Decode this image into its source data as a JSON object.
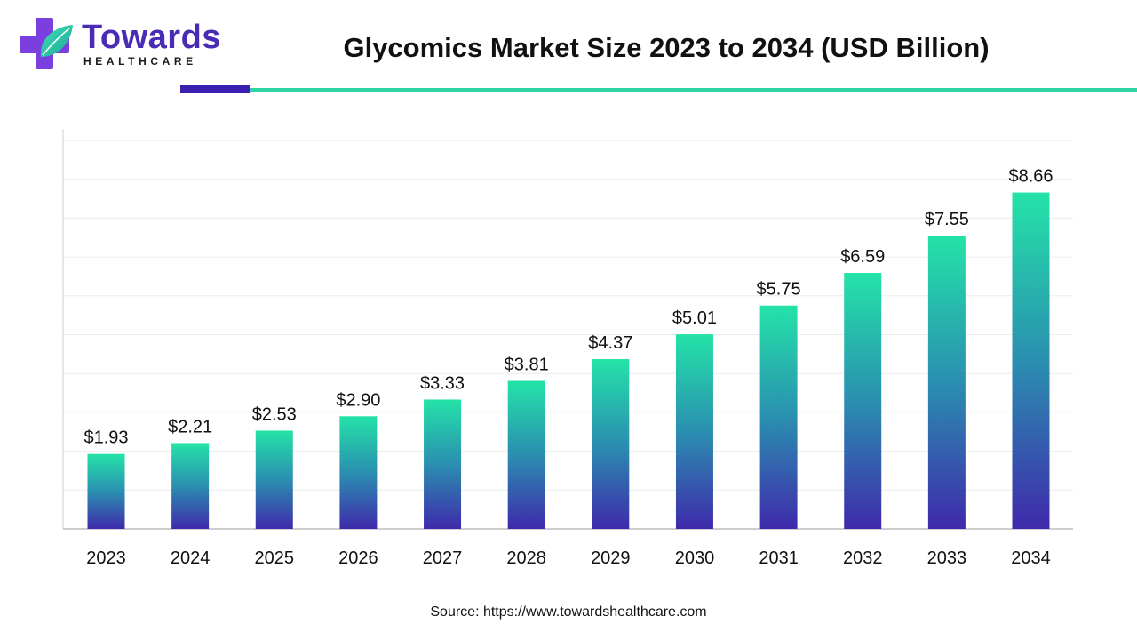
{
  "brand": {
    "name": "Towards",
    "subname": "HEALTHCARE"
  },
  "source": "Source: https://www.towardshealthcare.com",
  "colors": {
    "bar_top": "#24e3a8",
    "bar_mid": "#2a8fb0",
    "bar_bottom": "#3f2aab",
    "accent_dark": "#3a1fb0",
    "accent_teal": "#2fd3a6"
  },
  "chart_data": {
    "type": "bar",
    "title": "Glycomics Market Size 2023 to 2034 (USD Billion)",
    "categories": [
      "2023",
      "2024",
      "2025",
      "2026",
      "2027",
      "2028",
      "2029",
      "2030",
      "2031",
      "2032",
      "2033",
      "2034"
    ],
    "values": [
      1.93,
      2.21,
      2.53,
      2.9,
      3.33,
      3.81,
      4.37,
      5.01,
      5.75,
      6.59,
      7.55,
      8.66
    ],
    "data_labels": [
      "$1.93",
      "$2.21",
      "$2.53",
      "$2.90",
      "$3.33",
      "$3.81",
      "$4.37",
      "$5.01",
      "$5.75",
      "$6.59",
      "$7.55",
      "$8.66"
    ],
    "xlabel": "",
    "ylabel": "",
    "ylim": [
      0,
      10
    ],
    "grid": true,
    "legend": "none"
  }
}
